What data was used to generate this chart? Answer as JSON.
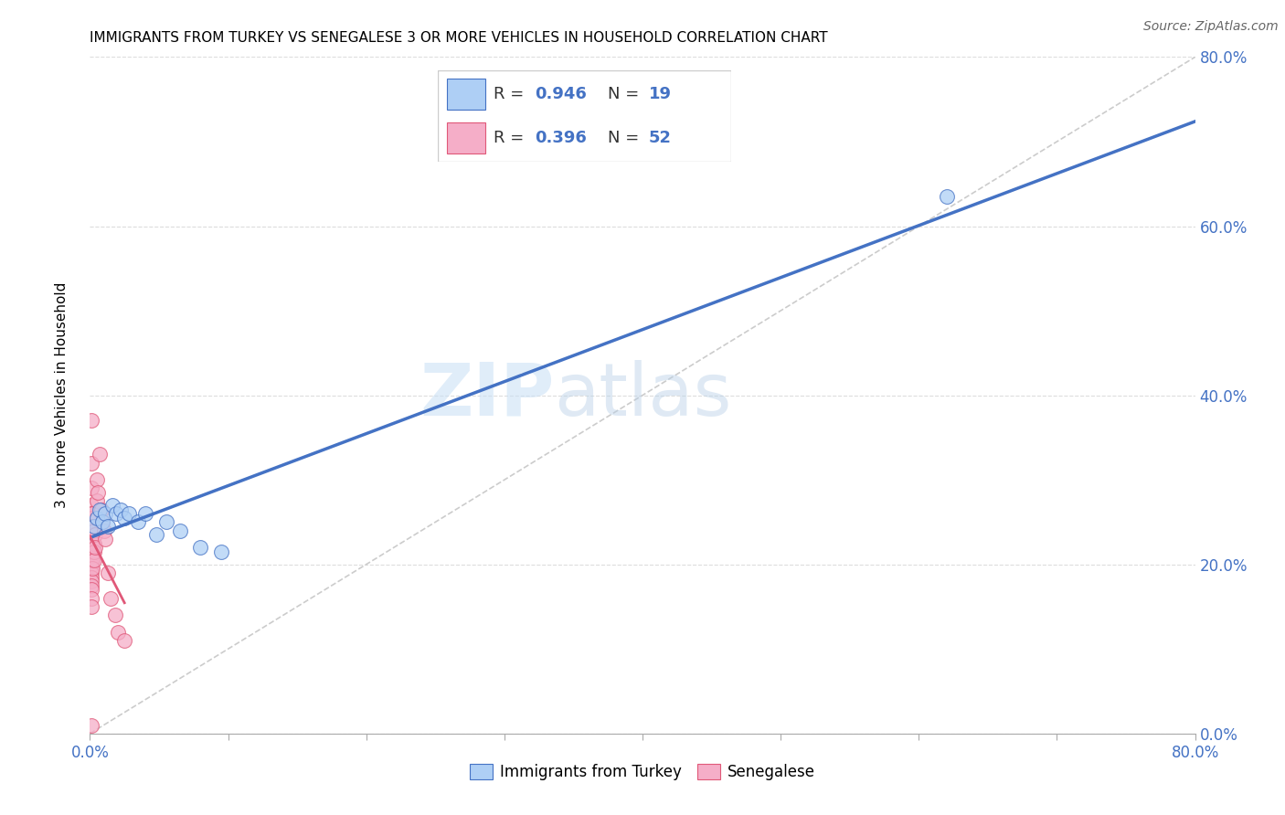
{
  "title": "IMMIGRANTS FROM TURKEY VS SENEGALESE 3 OR MORE VEHICLES IN HOUSEHOLD CORRELATION CHART",
  "source": "Source: ZipAtlas.com",
  "ylabel": "3 or more Vehicles in Household",
  "xlabel_blue": "Immigrants from Turkey",
  "xlabel_pink": "Senegalese",
  "watermark_zip": "ZIP",
  "watermark_atlas": "atlas",
  "xlim": [
    0.0,
    0.8
  ],
  "ylim": [
    0.0,
    0.8
  ],
  "yticks": [
    0.0,
    0.2,
    0.4,
    0.6,
    0.8
  ],
  "ytick_labels": [
    "0.0%",
    "20.0%",
    "40.0%",
    "60.0%",
    "80.0%"
  ],
  "xtick_positions": [
    0.0,
    0.1,
    0.2,
    0.3,
    0.4,
    0.5,
    0.6,
    0.7,
    0.8
  ],
  "blue_R": 0.946,
  "blue_N": 19,
  "pink_R": 0.396,
  "pink_N": 52,
  "blue_color": "#aecff5",
  "pink_color": "#f5aec8",
  "blue_line_color": "#4472c4",
  "pink_line_color": "#e05878",
  "blue_edge_color": "#4472c4",
  "pink_edge_color": "#e05878",
  "blue_scatter": [
    [
      0.003,
      0.245
    ],
    [
      0.005,
      0.255
    ],
    [
      0.007,
      0.265
    ],
    [
      0.009,
      0.25
    ],
    [
      0.011,
      0.26
    ],
    [
      0.013,
      0.245
    ],
    [
      0.016,
      0.27
    ],
    [
      0.019,
      0.26
    ],
    [
      0.022,
      0.265
    ],
    [
      0.025,
      0.255
    ],
    [
      0.028,
      0.26
    ],
    [
      0.035,
      0.25
    ],
    [
      0.04,
      0.26
    ],
    [
      0.048,
      0.235
    ],
    [
      0.055,
      0.25
    ],
    [
      0.065,
      0.24
    ],
    [
      0.08,
      0.22
    ],
    [
      0.095,
      0.215
    ],
    [
      0.62,
      0.635
    ]
  ],
  "pink_scatter": [
    [
      0.001,
      0.37
    ],
    [
      0.001,
      0.32
    ],
    [
      0.001,
      0.29
    ],
    [
      0.001,
      0.27
    ],
    [
      0.001,
      0.26
    ],
    [
      0.001,
      0.255
    ],
    [
      0.001,
      0.25
    ],
    [
      0.001,
      0.245
    ],
    [
      0.001,
      0.24
    ],
    [
      0.001,
      0.235
    ],
    [
      0.001,
      0.23
    ],
    [
      0.001,
      0.225
    ],
    [
      0.001,
      0.22
    ],
    [
      0.001,
      0.215
    ],
    [
      0.001,
      0.21
    ],
    [
      0.001,
      0.205
    ],
    [
      0.001,
      0.2
    ],
    [
      0.001,
      0.195
    ],
    [
      0.001,
      0.19
    ],
    [
      0.001,
      0.185
    ],
    [
      0.001,
      0.18
    ],
    [
      0.001,
      0.175
    ],
    [
      0.001,
      0.17
    ],
    [
      0.001,
      0.16
    ],
    [
      0.001,
      0.15
    ],
    [
      0.002,
      0.26
    ],
    [
      0.002,
      0.245
    ],
    [
      0.002,
      0.235
    ],
    [
      0.002,
      0.225
    ],
    [
      0.002,
      0.215
    ],
    [
      0.002,
      0.205
    ],
    [
      0.002,
      0.195
    ],
    [
      0.003,
      0.24
    ],
    [
      0.003,
      0.225
    ],
    [
      0.003,
      0.215
    ],
    [
      0.003,
      0.205
    ],
    [
      0.004,
      0.235
    ],
    [
      0.004,
      0.22
    ],
    [
      0.005,
      0.3
    ],
    [
      0.005,
      0.275
    ],
    [
      0.006,
      0.285
    ],
    [
      0.007,
      0.33
    ],
    [
      0.008,
      0.265
    ],
    [
      0.009,
      0.25
    ],
    [
      0.01,
      0.24
    ],
    [
      0.011,
      0.23
    ],
    [
      0.013,
      0.19
    ],
    [
      0.015,
      0.16
    ],
    [
      0.018,
      0.14
    ],
    [
      0.02,
      0.12
    ],
    [
      0.025,
      0.11
    ],
    [
      0.001,
      0.01
    ]
  ],
  "diagonal_color": "#cccccc",
  "diagonal_linestyle": "--"
}
